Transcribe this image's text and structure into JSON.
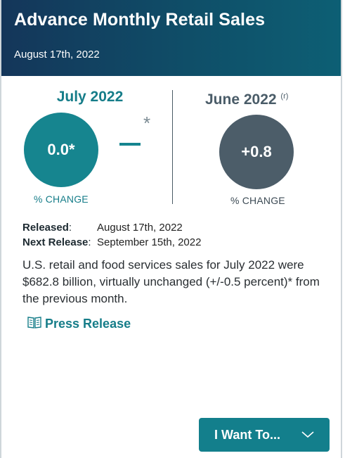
{
  "header": {
    "title": "Advance Monthly Retail Sales",
    "date": "August 17th, 2022"
  },
  "current": {
    "month": "July 2022",
    "value": "0.0*",
    "label": "% CHANGE",
    "star": "*",
    "accent_color": "#16858f"
  },
  "previous": {
    "month": "June 2022",
    "revised_mark": "(r)",
    "value": "+0.8",
    "label": "% CHANGE",
    "accent_color": "#4c5d69"
  },
  "release": {
    "released_label": "Released",
    "released_colon": ":",
    "released_value": "August 17th, 2022",
    "next_label": "Next Release",
    "next_colon": ":",
    "next_value": "September 15th, 2022"
  },
  "description": "U.S. retail and food services sales for July 2022 were $682.8 billion, virtually unchanged (+/-0.5 percent)* from the previous month.",
  "press_release": {
    "label": "Press Release",
    "icon": "book-icon"
  },
  "action_button": {
    "label": "I Want To...",
    "icon": "chevron-down-icon"
  }
}
